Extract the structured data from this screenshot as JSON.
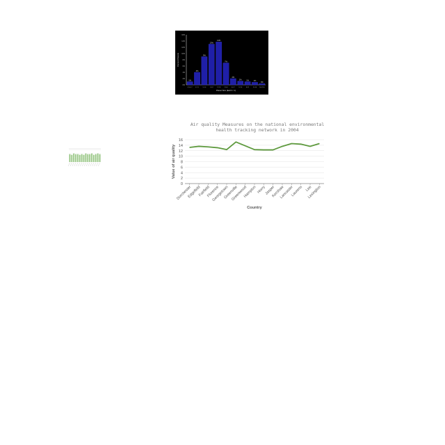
{
  "chart_data": [
    {
      "type": "bar",
      "title": "",
      "xlabel": "Planet Size (Earth = 1)",
      "ylabel": "Percent Planets",
      "background": "#000000",
      "bar_color": "#1f1fa8",
      "categories": [
        "0.5-0.7",
        "0.7-1",
        "1-1.4",
        "1.4-2",
        "2-2.8",
        "2.8-4",
        "4-5.7",
        "5.7-8",
        "8-11",
        "11-16",
        "16-22.6"
      ],
      "values": [
        1,
        4,
        9,
        13,
        13.7,
        7,
        2,
        1.2,
        1,
        0.8,
        0.4
      ],
      "data_labels": [
        "1%",
        "4%",
        "9%",
        "13%",
        "14%",
        "7%",
        "2%",
        "1%",
        "1%",
        "1%",
        "0%"
      ],
      "ylim": [
        0,
        16
      ]
    },
    {
      "type": "bar",
      "title": "",
      "bar_color": "#8fc27a",
      "categories": [
        "1",
        "2",
        "3",
        "4",
        "5",
        "6",
        "7",
        "8",
        "9",
        "10",
        "11",
        "12",
        "13",
        "14",
        "15",
        "16"
      ],
      "values": [
        12,
        11,
        13,
        12,
        12,
        11,
        12,
        11,
        13,
        12,
        12,
        13,
        11,
        12,
        13,
        12
      ],
      "ylim": [
        0,
        18
      ]
    },
    {
      "type": "line",
      "title_lines": [
        "Air quality Measures on the national environmental",
        "health tracking network in 2004"
      ],
      "xlabel": "Country",
      "ylabel": "Value of air quality",
      "line_color": "#5e9a3e",
      "categories": [
        "Dorchester",
        "Edgefield",
        "Fairfield",
        "Florence",
        "Georgetown",
        "Greenville",
        "Greenwood",
        "Hampton",
        "Horry",
        "Jasper",
        "Kershaw",
        "Lancaster",
        "Laurens",
        "Lee",
        "Lexington"
      ],
      "values": [
        13.2,
        13.6,
        13.4,
        13.1,
        12.4,
        15.2,
        13.8,
        12.4,
        12.3,
        12.3,
        13.6,
        14.6,
        14.4,
        13.6,
        14.6
      ],
      "yticks": [
        "0",
        "2",
        "4",
        "6",
        "8",
        "10",
        "12",
        "14",
        "16"
      ],
      "ylim": [
        0,
        16
      ]
    }
  ]
}
